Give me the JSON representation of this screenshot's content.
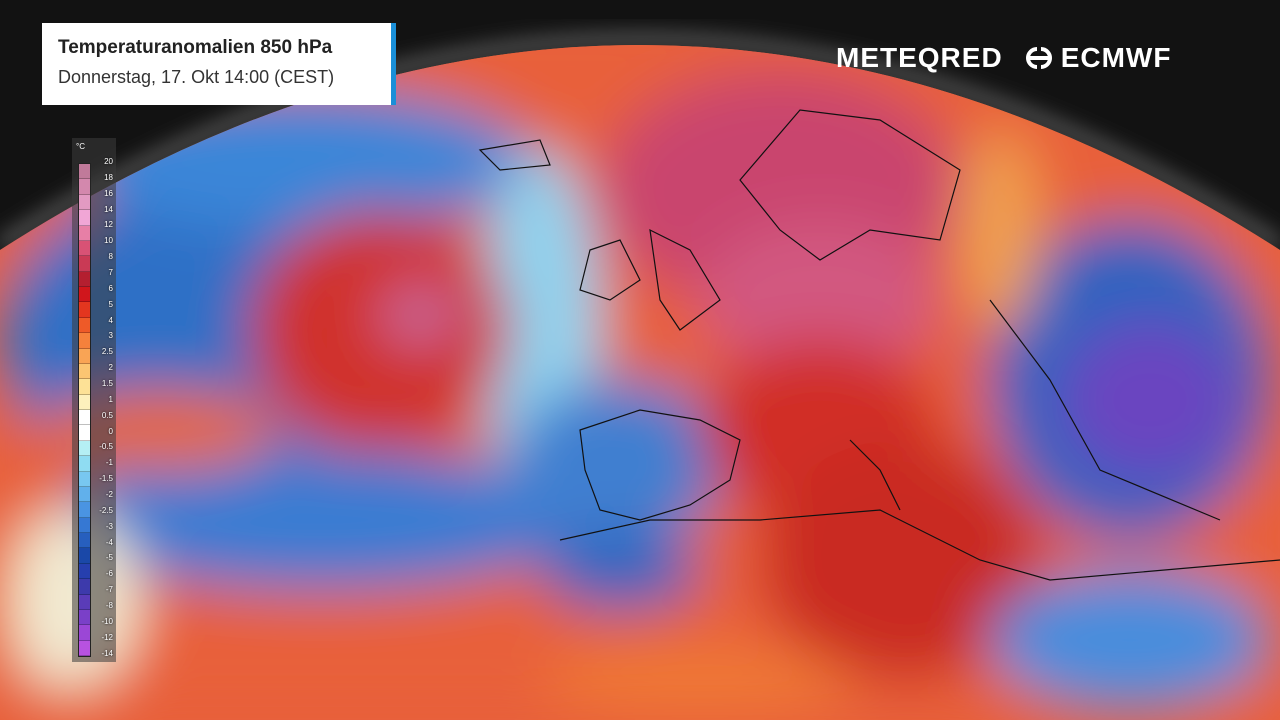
{
  "header": {
    "title": "Temperaturanomalien 850 hPa",
    "subtitle": "Donnerstag, 17. Okt 14:00 (CEST)"
  },
  "logos": {
    "meteored": "METEQRED",
    "ecmwf": "ECMWF"
  },
  "legend": {
    "unit": "°C",
    "labels": [
      "20",
      "18",
      "16",
      "14",
      "12",
      "10",
      "8",
      "7",
      "6",
      "5",
      "4",
      "3",
      "2.5",
      "2",
      "1.5",
      "1",
      "0.5",
      "0",
      "-0.5",
      "-1",
      "-1.5",
      "-2",
      "-2.5",
      "-3",
      "-4",
      "-5",
      "-6",
      "-7",
      "-8",
      "-10",
      "-12",
      "-14"
    ],
    "colors": [
      "#c07a9a",
      "#d388ad",
      "#e29ac2",
      "#f1a6d6",
      "#e77fa6",
      "#d85275",
      "#c93a55",
      "#b41f30",
      "#d0161c",
      "#e3361f",
      "#ee5a28",
      "#f5813c",
      "#f9a455",
      "#fbc572",
      "#fde196",
      "#fdf0bc",
      "#ffffff",
      "#ffffff",
      "#b5eff4",
      "#8fdcf2",
      "#78c7f0",
      "#61b0eb",
      "#4a94e2",
      "#3678d3",
      "#275fbe",
      "#1a48a8",
      "#263fae",
      "#3d3aab",
      "#5a3cb8",
      "#7a40c8",
      "#9b47d6",
      "#b752e0"
    ]
  },
  "map": {
    "type": "temperature-anomaly",
    "warm": "#d8322a",
    "cold": "#2f6fc8",
    "extreme_warm": "#d46a9c",
    "extreme_cold": "#7a4bc8"
  }
}
